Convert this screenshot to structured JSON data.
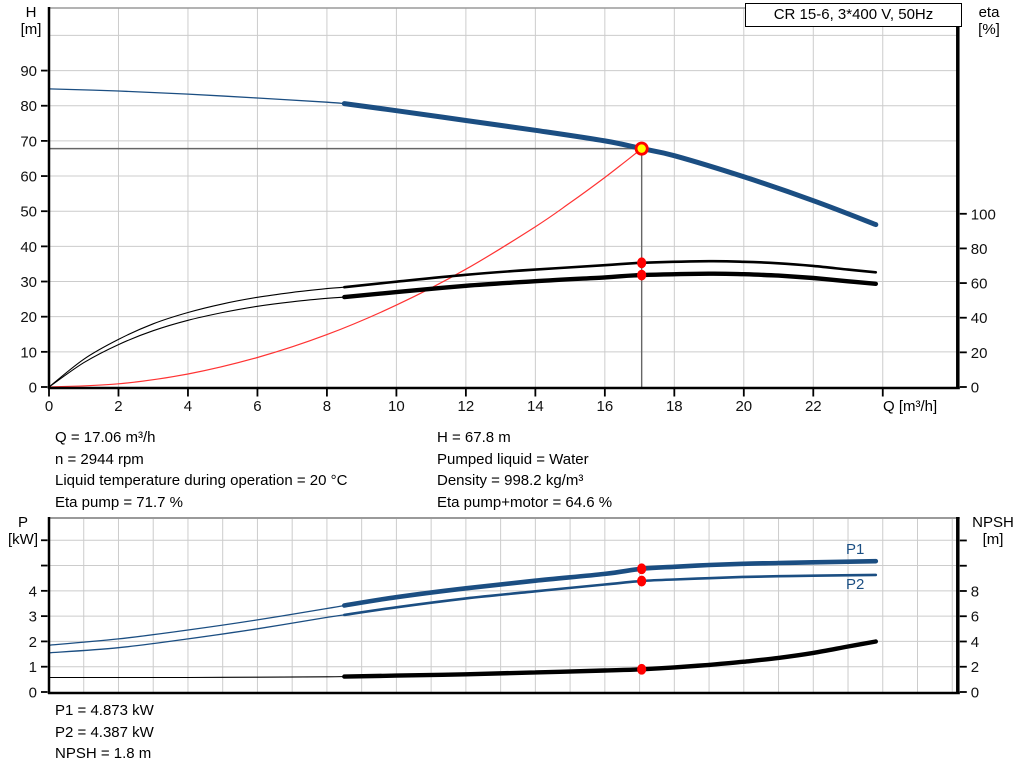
{
  "title_box": "CR 15-6, 3*400 V, 50Hz",
  "colors": {
    "curve_blue": "#1b4e82",
    "curve_black": "#000000",
    "system_curve_red": "#ff3333",
    "marker_red": "#ff0000",
    "marker_yellow": "#ffff00",
    "grid": "#cccccc",
    "crosshair": "#666666",
    "frame_gray": "#9a9a9a"
  },
  "annotations": {
    "mid_left": [
      "Q = 17.06 m³/h",
      "n = 2944 rpm",
      "Liquid temperature during operation = 20 °C",
      "Eta pump = 71.7 %"
    ],
    "mid_right": [
      "H = 67.8 m",
      "Pumped liquid = Water",
      "Density = 998.2 kg/m³",
      "Eta pump+motor = 64.6 %"
    ],
    "bottom": [
      "P1 = 4.873 kW",
      "P2 = 4.387 kW",
      "NPSH = 1.8 m"
    ]
  },
  "chart_data": [
    {
      "type": "line",
      "id": "head-efficiency-chart",
      "x_axis": {
        "label": "Q [m³/h]",
        "min": 0,
        "max": 26.16,
        "ticks": [
          0,
          2,
          4,
          6,
          8,
          10,
          12,
          14,
          16,
          18,
          20,
          22
        ],
        "unlabeled_ticks": [
          24
        ],
        "grid_step": 2,
        "grid_max": 24
      },
      "y_left": {
        "label_lines": [
          "H",
          "[m]"
        ],
        "min": 0,
        "max": 107.8,
        "ticks": [
          0,
          10,
          20,
          30,
          40,
          50,
          60,
          70,
          80,
          90
        ],
        "unlabeled_ticks": [],
        "grid": [
          10,
          20,
          30,
          40,
          50,
          60,
          70,
          80,
          90,
          100
        ]
      },
      "y_right": {
        "label_lines": [
          "eta",
          "[%]"
        ],
        "min": 0,
        "max": 218.8,
        "ticks": [
          0,
          20,
          40,
          60,
          80,
          100
        ],
        "unlabeled_ticks": []
      },
      "duty_point": {
        "q": 17.06,
        "h": 67.8
      },
      "crosshair": true,
      "dots": [
        {
          "q": 17.06,
          "v": 71.7,
          "axis": "right"
        },
        {
          "q": 17.06,
          "v": 64.6,
          "axis": "right"
        }
      ],
      "series": [
        {
          "name": "system",
          "label": "system curve",
          "axis": "left",
          "color": "#ff3333",
          "thin_until": null,
          "points": [
            [
              0,
              0
            ],
            [
              2,
              0.9
            ],
            [
              4,
              3.7
            ],
            [
              6,
              8.4
            ],
            [
              8,
              14.9
            ],
            [
              10,
              23.3
            ],
            [
              12,
              33.5
            ],
            [
              14,
              45.6
            ],
            [
              15,
              52.4
            ],
            [
              16,
              59.6
            ],
            [
              16.6,
              64.2
            ],
            [
              17.06,
              67.8
            ]
          ]
        },
        {
          "name": "eta-pump",
          "label": "eta pump",
          "axis": "right",
          "color": "#000000",
          "thin_until": 8.5,
          "points": [
            [
              0,
              0
            ],
            [
              1,
              16
            ],
            [
              2,
              27.5
            ],
            [
              3,
              36.5
            ],
            [
              4,
              43
            ],
            [
              5,
              48
            ],
            [
              6,
              51.8
            ],
            [
              7,
              54.6
            ],
            [
              8,
              56.8
            ],
            [
              8.5,
              57.6
            ],
            [
              10,
              60.8
            ],
            [
              12,
              64.8
            ],
            [
              14,
              67.8
            ],
            [
              16,
              70.3
            ],
            [
              17.06,
              71.7
            ],
            [
              19,
              72.6
            ],
            [
              20,
              72.3
            ],
            [
              21,
              71.4
            ],
            [
              22,
              69.9
            ],
            [
              23,
              67.8
            ],
            [
              23.8,
              66.2
            ]
          ]
        },
        {
          "name": "eta-pump-motor",
          "label": "eta pump+motor",
          "axis": "right",
          "color": "#000000",
          "thin_until": 8.5,
          "points": [
            [
              0,
              0
            ],
            [
              1,
              14
            ],
            [
              2,
              24.5
            ],
            [
              3,
              32.5
            ],
            [
              4,
              38.5
            ],
            [
              5,
              43
            ],
            [
              6,
              46.6
            ],
            [
              7,
              49.2
            ],
            [
              8,
              51.2
            ],
            [
              8.5,
              51.9
            ],
            [
              10,
              54.8
            ],
            [
              12,
              58.4
            ],
            [
              14,
              61.1
            ],
            [
              16,
              63.3
            ],
            [
              17.06,
              64.6
            ],
            [
              19,
              65.4
            ],
            [
              20,
              65.1
            ],
            [
              21,
              64.3
            ],
            [
              22,
              62.9
            ],
            [
              23,
              61.0
            ],
            [
              23.8,
              59.6
            ]
          ]
        },
        {
          "name": "H",
          "label": "H-Q curve",
          "axis": "left",
          "color": "#1b4e82",
          "thin_until": 8.5,
          "points": [
            [
              0,
              84.8
            ],
            [
              2,
              84.2
            ],
            [
              4,
              83.3
            ],
            [
              6,
              82.2
            ],
            [
              8,
              81.0
            ],
            [
              8.5,
              80.6
            ],
            [
              10,
              78.6
            ],
            [
              12,
              75.8
            ],
            [
              14,
              73.0
            ],
            [
              16,
              70.0
            ],
            [
              17.06,
              67.8
            ],
            [
              18,
              65.8
            ],
            [
              20,
              59.8
            ],
            [
              22,
              53.0
            ],
            [
              23.8,
              46.2
            ]
          ]
        }
      ]
    },
    {
      "type": "line",
      "id": "power-npsh-chart",
      "x_axis": {
        "label": "",
        "min": 0,
        "max": 26.16,
        "ticks": [],
        "unlabeled_ticks": [],
        "grid_step": 1,
        "grid_max": 26
      },
      "y_left": {
        "label_lines": [
          "P",
          "[kW]"
        ],
        "min": 0,
        "max": 6.88,
        "ticks": [
          0,
          1,
          2,
          3,
          4
        ],
        "unlabeled_ticks": [
          5,
          6
        ],
        "grid": [
          1,
          2,
          3,
          4,
          5,
          6
        ]
      },
      "y_right": {
        "label_lines": [
          "NPSH",
          "[m]"
        ],
        "min": 0,
        "max": 13.78,
        "ticks": [
          0,
          2,
          4,
          6,
          8
        ],
        "unlabeled_ticks": [
          10,
          12
        ]
      },
      "crosshair": false,
      "dots": [
        {
          "q": 17.06,
          "v": 4.873,
          "axis": "left"
        },
        {
          "q": 17.06,
          "v": 4.387,
          "axis": "left"
        },
        {
          "q": 17.06,
          "v": 1.8,
          "axis": "right"
        }
      ],
      "series": [
        {
          "name": "P1",
          "label": "P1",
          "axis": "left",
          "color": "#1b4e82",
          "thin_until": 8.5,
          "points": [
            [
              0,
              1.85
            ],
            [
              2,
              2.1
            ],
            [
              4,
              2.45
            ],
            [
              6,
              2.85
            ],
            [
              8,
              3.3
            ],
            [
              8.5,
              3.42
            ],
            [
              10,
              3.75
            ],
            [
              12,
              4.1
            ],
            [
              14,
              4.4
            ],
            [
              16,
              4.67
            ],
            [
              17.06,
              4.873
            ],
            [
              18,
              4.95
            ],
            [
              19,
              5.02
            ],
            [
              20,
              5.07
            ],
            [
              21,
              5.1
            ],
            [
              22,
              5.13
            ],
            [
              23.8,
              5.17
            ]
          ]
        },
        {
          "name": "P2",
          "label": "P2",
          "axis": "left",
          "color": "#1b4e82",
          "thin_until": 8.5,
          "points": [
            [
              0,
              1.55
            ],
            [
              2,
              1.75
            ],
            [
              4,
              2.1
            ],
            [
              6,
              2.5
            ],
            [
              8,
              2.95
            ],
            [
              8.5,
              3.05
            ],
            [
              10,
              3.35
            ],
            [
              12,
              3.7
            ],
            [
              14,
              3.98
            ],
            [
              16,
              4.25
            ],
            [
              17.06,
              4.387
            ],
            [
              18,
              4.45
            ],
            [
              19,
              4.5
            ],
            [
              20,
              4.55
            ],
            [
              21,
              4.58
            ],
            [
              22,
              4.6
            ],
            [
              23.8,
              4.63
            ]
          ]
        },
        {
          "name": "NPSH",
          "label": "NPSH",
          "axis": "right",
          "color": "#000000",
          "thin_until": 8.5,
          "points": [
            [
              0,
              1.15
            ],
            [
              2,
              1.15
            ],
            [
              4,
              1.15
            ],
            [
              6,
              1.17
            ],
            [
              8,
              1.2
            ],
            [
              8.5,
              1.22
            ],
            [
              10,
              1.3
            ],
            [
              12,
              1.4
            ],
            [
              14,
              1.55
            ],
            [
              16,
              1.7
            ],
            [
              17.06,
              1.8
            ],
            [
              18,
              1.95
            ],
            [
              19,
              2.15
            ],
            [
              20,
              2.4
            ],
            [
              21,
              2.7
            ],
            [
              22,
              3.1
            ],
            [
              23,
              3.6
            ],
            [
              23.8,
              4.0
            ]
          ]
        }
      ]
    }
  ]
}
